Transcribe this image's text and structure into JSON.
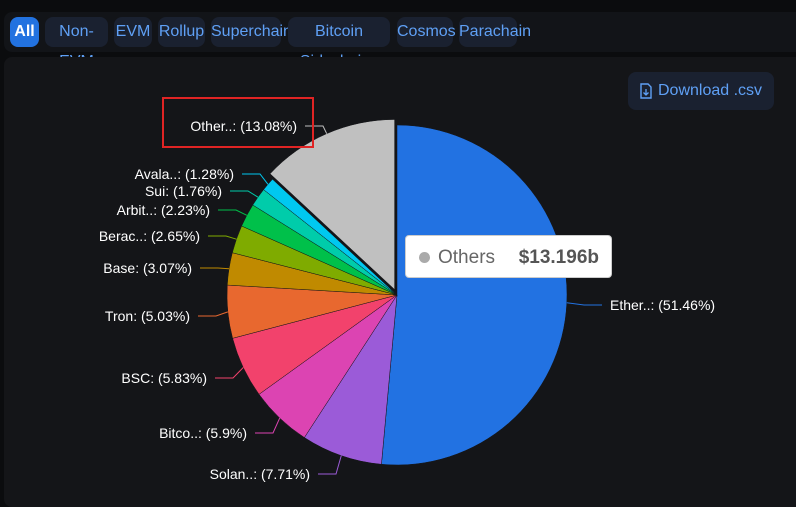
{
  "tabs": [
    "All",
    "Non-EVM",
    "EVM",
    "Rollup",
    "Superchain",
    "Bitcoin Sidechains",
    "Cosmos",
    "Parachain"
  ],
  "download_label": "Download .csv",
  "tooltip": {
    "name": "Others",
    "value": "$13.196b"
  },
  "chart_data": {
    "type": "pie",
    "start": "top",
    "direction": "clockwise",
    "slices": [
      {
        "label": "Ether..: (51.46%)",
        "name": "Ether..",
        "value": 51.46,
        "color": "#2272e2"
      },
      {
        "label": "Solan..: (7.71%)",
        "name": "Solan..",
        "value": 7.71,
        "color": "#9b5bd8"
      },
      {
        "label": "Bitco..: (5.9%)",
        "name": "Bitco..",
        "value": 5.9,
        "color": "#dc44b2"
      },
      {
        "label": "BSC: (5.83%)",
        "name": "BSC",
        "value": 5.83,
        "color": "#f2426c"
      },
      {
        "label": "Tron: (5.03%)",
        "name": "Tron",
        "value": 5.03,
        "color": "#e8682f"
      },
      {
        "label": "Base: (3.07%)",
        "name": "Base",
        "value": 3.07,
        "color": "#c08a00"
      },
      {
        "label": "Berac..: (2.65%)",
        "name": "Berac..",
        "value": 2.65,
        "color": "#7fab00"
      },
      {
        "label": "Arbit..: (2.23%)",
        "name": "Arbit..",
        "value": 2.23,
        "color": "#00c04a"
      },
      {
        "label": "Sui: (1.76%)",
        "name": "Sui",
        "value": 1.76,
        "color": "#00ccaa"
      },
      {
        "label": "Avala..: (1.28%)",
        "name": "Avala..",
        "value": 1.28,
        "color": "#00c8f0"
      },
      {
        "label": "Other..: (13.08%)",
        "name": "Other..",
        "value": 13.08,
        "color": "#c0c0c0"
      }
    ]
  }
}
